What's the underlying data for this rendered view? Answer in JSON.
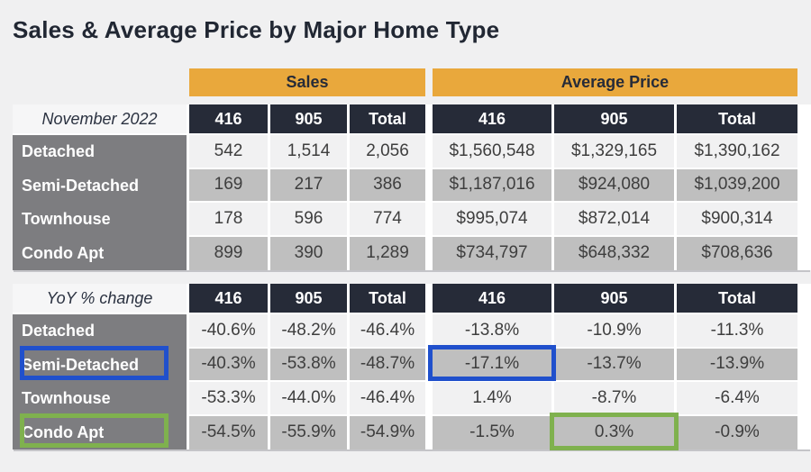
{
  "title": "Sales & Average Price by Major Home Type",
  "chart_data": {
    "type": "table",
    "title": "Sales & Average Price by Major Home Type",
    "column_groups": [
      {
        "label": "Sales"
      },
      {
        "label": "Average Price"
      }
    ],
    "columns": [
      "416",
      "905",
      "Total"
    ],
    "sections": [
      {
        "corner_label": "November 2022",
        "rows": [
          {
            "label": "Detached",
            "cells": [
              "542",
              "1,514",
              "2,056",
              "$1,560,548",
              "$1,329,165",
              "$1,390,162"
            ]
          },
          {
            "label": "Semi-Detached",
            "cells": [
              "169",
              "217",
              "386",
              "$1,187,016",
              "$924,080",
              "$1,039,200"
            ]
          },
          {
            "label": "Townhouse",
            "cells": [
              "178",
              "596",
              "774",
              "$995,074",
              "$872,014",
              "$900,314"
            ]
          },
          {
            "label": "Condo Apt",
            "cells": [
              "899",
              "390",
              "1,289",
              "$734,797",
              "$648,332",
              "$708,636"
            ]
          }
        ]
      },
      {
        "corner_label": "YoY % change",
        "rows": [
          {
            "label": "Detached",
            "cells": [
              "-40.6%",
              "-48.2%",
              "-46.4%",
              "-13.8%",
              "-10.9%",
              "-11.3%"
            ]
          },
          {
            "label": "Semi-Detached",
            "cells": [
              "-40.3%",
              "-53.8%",
              "-48.7%",
              "-17.1%",
              "-13.7%",
              "-13.9%"
            ]
          },
          {
            "label": "Townhouse",
            "cells": [
              "-53.3%",
              "-44.0%",
              "-46.4%",
              "1.4%",
              "-8.7%",
              "-6.4%"
            ]
          },
          {
            "label": "Condo Apt",
            "cells": [
              "-54.5%",
              "-55.9%",
              "-54.9%",
              "-1.5%",
              "0.3%",
              "-0.9%"
            ]
          }
        ],
        "highlights": [
          {
            "shape": "rectangle-outline",
            "color": "#2050CC",
            "target": "row label Semi-Detached"
          },
          {
            "shape": "rectangle-outline",
            "color": "#2050CC",
            "target": "Semi-Detached / Average Price 416 cell (-17.1%)"
          },
          {
            "shape": "rectangle-outline",
            "color": "#7FB14E",
            "target": "row label Condo Apt"
          },
          {
            "shape": "rectangle-outline",
            "color": "#7FB14E",
            "target": "Condo Apt / Average Price 905 cell (0.3%)"
          }
        ]
      }
    ]
  },
  "colors": {
    "page_bg": "#F0F0F1",
    "accent_orange": "#E9A83C",
    "band_text": "#262B38",
    "header_dark": "#262B38",
    "corner_bg": "#F6F6F7",
    "corner_text": "#2A3140",
    "label_gray": "#7D7D80",
    "row_light": "#F1F1F2",
    "row_shaded": "#BFBFBF",
    "text_dark": "#3E3E3E",
    "title_color": "#212733",
    "highlight_blue": "#2050CC",
    "highlight_green": "#7FB14E"
  }
}
